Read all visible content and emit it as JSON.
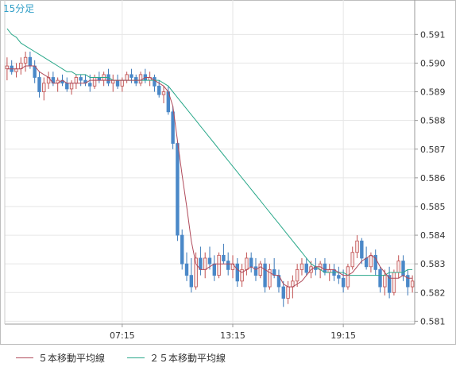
{
  "timeframe_label": "15分足",
  "colors": {
    "up_candle": "#f8e8e8",
    "up_border": "#c05050",
    "down_candle": "#4a88c8",
    "ma5": "#b04a5a",
    "ma25": "#2aa88a",
    "grid": "#e6e6e6",
    "axis": "#999999"
  },
  "legend": {
    "ma5_label": "５本移動平均線",
    "ma25_label": "２５本移動平均線"
  },
  "chart_data": {
    "type": "candlestick",
    "title": "",
    "ylim": [
      0.5809,
      0.5922
    ],
    "y_ticks": [
      "0.591",
      "0.590",
      "0.589",
      "0.588",
      "0.587",
      "0.586",
      "0.585",
      "0.584",
      "0.583",
      "0.582",
      "0.581"
    ],
    "x_ticks": [
      {
        "index": 25,
        "label": "07:15"
      },
      {
        "index": 49,
        "label": "13:15"
      },
      {
        "index": 73,
        "label": "19:15"
      }
    ],
    "candles": [
      [
        0.5898,
        0.5902,
        0.5894,
        0.5899
      ],
      [
        0.5899,
        0.5901,
        0.5896,
        0.5897
      ],
      [
        0.5897,
        0.59,
        0.5895,
        0.5898
      ],
      [
        0.5898,
        0.5902,
        0.5896,
        0.59
      ],
      [
        0.59,
        0.5904,
        0.5897,
        0.5902
      ],
      [
        0.5902,
        0.5904,
        0.5898,
        0.5899
      ],
      [
        0.5899,
        0.5901,
        0.5893,
        0.5895
      ],
      [
        0.5895,
        0.5897,
        0.5888,
        0.589
      ],
      [
        0.589,
        0.5895,
        0.5887,
        0.5893
      ],
      [
        0.5893,
        0.5897,
        0.5891,
        0.5895
      ],
      [
        0.5895,
        0.5897,
        0.5892,
        0.5893
      ],
      [
        0.5893,
        0.5895,
        0.589,
        0.5894
      ],
      [
        0.5894,
        0.5896,
        0.5892,
        0.5893
      ],
      [
        0.5893,
        0.5895,
        0.589,
        0.5891
      ],
      [
        0.5891,
        0.5894,
        0.5889,
        0.5893
      ],
      [
        0.5893,
        0.5896,
        0.5891,
        0.5895
      ],
      [
        0.5895,
        0.5896,
        0.5892,
        0.5894
      ],
      [
        0.5894,
        0.5896,
        0.5892,
        0.5893
      ],
      [
        0.5893,
        0.5896,
        0.589,
        0.5892
      ],
      [
        0.5892,
        0.5896,
        0.5891,
        0.5895
      ],
      [
        0.5895,
        0.5897,
        0.5893,
        0.5894
      ],
      [
        0.5894,
        0.5897,
        0.5892,
        0.5896
      ],
      [
        0.5896,
        0.5898,
        0.5892,
        0.5893
      ],
      [
        0.5893,
        0.5896,
        0.589,
        0.5894
      ],
      [
        0.5894,
        0.5896,
        0.5891,
        0.5892
      ],
      [
        0.5892,
        0.5895,
        0.589,
        0.5894
      ],
      [
        0.5894,
        0.5897,
        0.5893,
        0.5896
      ],
      [
        0.5896,
        0.5898,
        0.5893,
        0.5895
      ],
      [
        0.5895,
        0.5896,
        0.5892,
        0.5893
      ],
      [
        0.5893,
        0.5897,
        0.5892,
        0.5896
      ],
      [
        0.5896,
        0.5898,
        0.5893,
        0.5894
      ],
      [
        0.5894,
        0.5897,
        0.5892,
        0.5895
      ],
      [
        0.5895,
        0.5896,
        0.589,
        0.5892
      ],
      [
        0.5892,
        0.5894,
        0.5888,
        0.5889
      ],
      [
        0.5889,
        0.5892,
        0.5886,
        0.589
      ],
      [
        0.589,
        0.5892,
        0.5882,
        0.5883
      ],
      [
        0.5883,
        0.5885,
        0.587,
        0.5872
      ],
      [
        0.5872,
        0.5873,
        0.5838,
        0.584
      ],
      [
        0.584,
        0.5842,
        0.5828,
        0.583
      ],
      [
        0.583,
        0.5834,
        0.5824,
        0.5826
      ],
      [
        0.5826,
        0.5832,
        0.582,
        0.5822
      ],
      [
        0.5822,
        0.5834,
        0.5821,
        0.5832
      ],
      [
        0.5832,
        0.5836,
        0.5826,
        0.5828
      ],
      [
        0.5828,
        0.5834,
        0.5825,
        0.5832
      ],
      [
        0.5832,
        0.5836,
        0.5828,
        0.583
      ],
      [
        0.583,
        0.5833,
        0.5824,
        0.5826
      ],
      [
        0.5826,
        0.5834,
        0.5825,
        0.5833
      ],
      [
        0.5833,
        0.5837,
        0.583,
        0.5831
      ],
      [
        0.5831,
        0.5834,
        0.5826,
        0.5828
      ],
      [
        0.5828,
        0.5833,
        0.5825,
        0.583
      ],
      [
        0.583,
        0.5832,
        0.5822,
        0.5824
      ],
      [
        0.5824,
        0.583,
        0.5822,
        0.5828
      ],
      [
        0.5828,
        0.5834,
        0.5826,
        0.5832
      ],
      [
        0.5832,
        0.5834,
        0.5827,
        0.5829
      ],
      [
        0.5829,
        0.5832,
        0.5824,
        0.5826
      ],
      [
        0.5826,
        0.5831,
        0.5825,
        0.583
      ],
      [
        0.583,
        0.5832,
        0.582,
        0.5822
      ],
      [
        0.5822,
        0.583,
        0.5821,
        0.5828
      ],
      [
        0.5828,
        0.5832,
        0.5825,
        0.5826
      ],
      [
        0.5826,
        0.5828,
        0.582,
        0.5822
      ],
      [
        0.5822,
        0.5824,
        0.5815,
        0.5818
      ],
      [
        0.5818,
        0.5824,
        0.5816,
        0.5822
      ],
      [
        0.5822,
        0.5826,
        0.5818,
        0.5824
      ],
      [
        0.5824,
        0.583,
        0.5822,
        0.5828
      ],
      [
        0.5828,
        0.5832,
        0.5826,
        0.583
      ],
      [
        0.583,
        0.5832,
        0.5826,
        0.5827
      ],
      [
        0.5827,
        0.5831,
        0.5825,
        0.5829
      ],
      [
        0.5829,
        0.5832,
        0.5826,
        0.5828
      ],
      [
        0.5828,
        0.5831,
        0.5825,
        0.583
      ],
      [
        0.583,
        0.5832,
        0.5826,
        0.5827
      ],
      [
        0.5827,
        0.583,
        0.5824,
        0.5828
      ],
      [
        0.5828,
        0.583,
        0.5824,
        0.5826
      ],
      [
        0.5826,
        0.5829,
        0.5823,
        0.5825
      ],
      [
        0.5825,
        0.5828,
        0.582,
        0.5822
      ],
      [
        0.5822,
        0.583,
        0.5821,
        0.5829
      ],
      [
        0.5829,
        0.5836,
        0.5828,
        0.5834
      ],
      [
        0.5834,
        0.584,
        0.5832,
        0.5838
      ],
      [
        0.5838,
        0.5839,
        0.583,
        0.5832
      ],
      [
        0.5832,
        0.5836,
        0.5828,
        0.5829
      ],
      [
        0.5829,
        0.5834,
        0.5827,
        0.5833
      ],
      [
        0.5833,
        0.5835,
        0.5826,
        0.5828
      ],
      [
        0.5828,
        0.5829,
        0.582,
        0.5822
      ],
      [
        0.5822,
        0.5828,
        0.5819,
        0.5826
      ],
      [
        0.5826,
        0.5829,
        0.5818,
        0.582
      ],
      [
        0.582,
        0.5828,
        0.5819,
        0.5827
      ],
      [
        0.5827,
        0.5833,
        0.5825,
        0.5831
      ],
      [
        0.5831,
        0.5833,
        0.5824,
        0.5826
      ],
      [
        0.5826,
        0.5828,
        0.5819,
        0.5822
      ],
      [
        0.5822,
        0.5826,
        0.582,
        0.5824
      ]
    ],
    "ma5": [
      0.5898,
      0.5898,
      0.5898,
      0.5898,
      0.5899,
      0.5899,
      0.5899,
      0.5897,
      0.5896,
      0.5895,
      0.5893,
      0.5893,
      0.5894,
      0.5893,
      0.5893,
      0.5893,
      0.5893,
      0.5893,
      0.5894,
      0.5894,
      0.5894,
      0.5894,
      0.5894,
      0.5894,
      0.5894,
      0.5894,
      0.5894,
      0.5894,
      0.5894,
      0.5894,
      0.5895,
      0.5895,
      0.5894,
      0.5893,
      0.5892,
      0.589,
      0.5885,
      0.5873,
      0.5861,
      0.585,
      0.5838,
      0.583,
      0.5828,
      0.5828,
      0.5829,
      0.583,
      0.583,
      0.583,
      0.583,
      0.583,
      0.5828,
      0.5827,
      0.5828,
      0.5829,
      0.5828,
      0.5829,
      0.5828,
      0.5827,
      0.5826,
      0.5826,
      0.5823,
      0.5822,
      0.5822,
      0.5823,
      0.5824,
      0.5826,
      0.5828,
      0.5829,
      0.5829,
      0.5828,
      0.5828,
      0.5828,
      0.5827,
      0.5826,
      0.5826,
      0.5827,
      0.5829,
      0.5831,
      0.5832,
      0.5833,
      0.5832,
      0.5829,
      0.5827,
      0.5825,
      0.5825,
      0.5825,
      0.5826,
      0.5825,
      0.5825
    ],
    "ma25": [
      0.5912,
      0.591,
      0.5909,
      0.5907,
      0.5906,
      0.5905,
      0.5904,
      0.5903,
      0.5902,
      0.5901,
      0.59,
      0.5899,
      0.5898,
      0.5897,
      0.5897,
      0.5896,
      0.5896,
      0.5896,
      0.5895,
      0.5895,
      0.5895,
      0.5895,
      0.5895,
      0.5894,
      0.5894,
      0.5894,
      0.5894,
      0.5894,
      0.5894,
      0.5894,
      0.5894,
      0.5894,
      0.5894,
      0.5894,
      0.5893,
      0.5892,
      0.589,
      0.5888,
      0.5886,
      0.5884,
      0.5882,
      0.588,
      0.5878,
      0.5876,
      0.5874,
      0.5872,
      0.587,
      0.5868,
      0.5866,
      0.5864,
      0.5862,
      0.586,
      0.5858,
      0.5856,
      0.5854,
      0.5852,
      0.585,
      0.5848,
      0.5846,
      0.5844,
      0.5842,
      0.584,
      0.5838,
      0.5836,
      0.5834,
      0.5832,
      0.583,
      0.5829,
      0.5828,
      0.5827,
      0.5827,
      0.5827,
      0.5827,
      0.5827,
      0.5826,
      0.5826,
      0.5826,
      0.5826,
      0.5826,
      0.5826,
      0.5826,
      0.5826,
      0.5826,
      0.5827,
      0.5827,
      0.5827,
      0.5827,
      0.5828,
      0.5828
    ]
  }
}
